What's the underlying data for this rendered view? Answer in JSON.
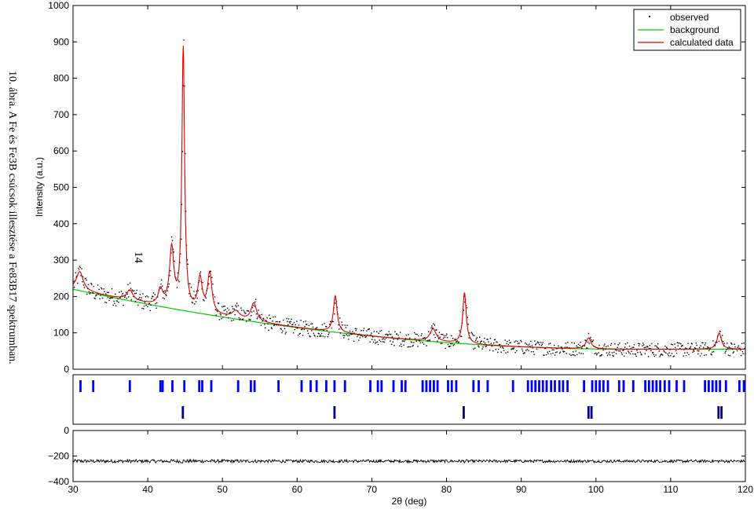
{
  "caption": "10. ábra. A Fe és Fe3B csúcsok illesztése a Fe83B17 spektrumban.",
  "page_number": "14",
  "chart_data": [
    {
      "type": "scatter",
      "panel": "pattern",
      "title": "",
      "xlabel": "",
      "ylabel": "Intensity (a.u.)",
      "xlim": [
        30,
        120
      ],
      "ylim": [
        0,
        1000
      ],
      "xticks": [
        30,
        40,
        50,
        60,
        70,
        80,
        90,
        100,
        110,
        120
      ],
      "yticks": [
        0,
        100,
        200,
        300,
        400,
        500,
        600,
        700,
        800,
        900,
        1000
      ],
      "legend_position": "top-right",
      "background": {
        "a": 55.0,
        "b": 165.0,
        "c": 0.00052,
        "x0": 30
      },
      "peaks": [
        {
          "x": 30.9,
          "h": 52,
          "w": 0.55
        },
        {
          "x": 37.6,
          "h": 28,
          "w": 0.5
        },
        {
          "x": 41.7,
          "h": 42,
          "w": 0.35
        },
        {
          "x": 43.2,
          "h": 160,
          "w": 0.35
        },
        {
          "x": 44.75,
          "h": 716,
          "w": 0.22
        },
        {
          "x": 47.0,
          "h": 90,
          "w": 0.35
        },
        {
          "x": 48.3,
          "h": 110,
          "w": 0.35
        },
        {
          "x": 51.8,
          "h": 20,
          "w": 0.6
        },
        {
          "x": 54.2,
          "h": 50,
          "w": 0.45
        },
        {
          "x": 65.1,
          "h": 100,
          "w": 0.3
        },
        {
          "x": 78.2,
          "h": 35,
          "w": 0.5
        },
        {
          "x": 82.4,
          "h": 140,
          "w": 0.28
        },
        {
          "x": 99.0,
          "h": 30,
          "w": 0.4
        },
        {
          "x": 116.5,
          "h": 45,
          "w": 0.35
        }
      ],
      "noise_amplitude": 24,
      "series": [
        {
          "name": "observed",
          "style": "dots",
          "color": "#000000"
        },
        {
          "name": "background",
          "style": "line",
          "color": "#00cc00"
        },
        {
          "name": "calculated data",
          "style": "line",
          "color": "#e00000"
        }
      ]
    },
    {
      "type": "ticks",
      "panel": "reflections",
      "xlim": [
        30,
        120
      ],
      "rows": [
        {
          "color": "#0000ff",
          "positions": [
            31.0,
            32.7,
            37.6,
            41.7,
            42.0,
            43.3,
            44.9,
            46.9,
            47.3,
            48.5,
            52.1,
            53.8,
            54.3,
            57.5,
            60.6,
            61.8,
            62.6,
            63.9,
            65.0,
            66.4,
            69.8,
            70.8,
            71.3,
            72.9,
            74.0,
            74.5,
            76.8,
            77.3,
            77.8,
            78.3,
            78.8,
            80.2,
            80.7,
            81.3,
            83.6,
            84.3,
            85.5,
            88.9,
            90.9,
            91.4,
            91.9,
            92.4,
            92.9,
            93.4,
            94.0,
            94.5,
            95.1,
            95.6,
            96.2,
            98.4,
            99.5,
            100.0,
            100.5,
            101.0,
            101.6,
            103.1,
            103.7,
            105.0,
            106.6,
            107.1,
            107.6,
            108.1,
            108.6,
            109.2,
            109.8,
            110.8,
            111.8,
            114.6,
            115.1,
            115.6,
            116.1,
            116.6,
            117.4,
            119.2,
            119.8
          ]
        },
        {
          "color": "#000080",
          "positions": [
            44.7,
            65.0,
            82.3,
            99.0,
            99.4,
            116.4,
            116.8
          ]
        }
      ]
    },
    {
      "type": "line",
      "panel": "difference",
      "xlim": [
        30,
        120
      ],
      "ylim": [
        -400,
        0
      ],
      "yticks": [
        -400,
        -200,
        0
      ],
      "xticks": [
        30,
        40,
        50,
        60,
        70,
        80,
        90,
        100,
        110,
        120
      ],
      "xlabel": "2θ (deg)",
      "offset": -240,
      "color": "#000000"
    }
  ]
}
